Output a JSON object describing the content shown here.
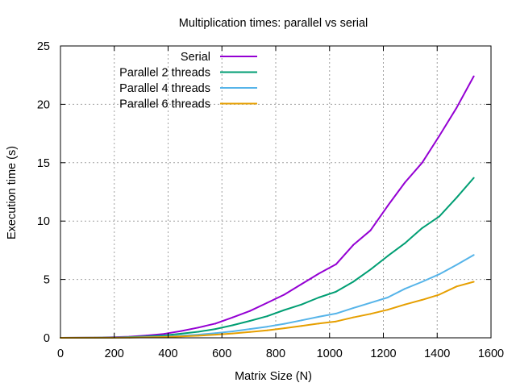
{
  "chart_data": {
    "type": "line",
    "title": "Multiplication times: parallel vs serial",
    "xlabel": "Matrix Size (N)",
    "ylabel": "Execution time (s)",
    "xlim": [
      0,
      1600
    ],
    "ylim": [
      0,
      25
    ],
    "xticks": [
      0,
      200,
      400,
      600,
      800,
      1000,
      1200,
      1400,
      1600
    ],
    "yticks": [
      0,
      5,
      10,
      15,
      20,
      25
    ],
    "xtick_labels": [
      "0",
      "200",
      "400",
      "600",
      "800",
      "1000",
      "1200",
      "1400",
      "1600"
    ],
    "ytick_labels": [
      "0",
      "5",
      "10",
      "15",
      "20",
      "25"
    ],
    "grid": true,
    "legend_position": "top-left",
    "series": [
      {
        "name": "Serial",
        "color": "#9400d3",
        "x": [
          0,
          128,
          192,
          256,
          320,
          384,
          448,
          512,
          576,
          640,
          704,
          768,
          832,
          896,
          960,
          1024,
          1088,
          1152,
          1216,
          1280,
          1344,
          1408,
          1472,
          1536
        ],
        "y": [
          0.0,
          0.02,
          0.05,
          0.1,
          0.2,
          0.33,
          0.58,
          0.88,
          1.22,
          1.75,
          2.3,
          3.0,
          3.7,
          4.6,
          5.5,
          6.3,
          7.95,
          9.2,
          11.3,
          13.3,
          15.0,
          17.3,
          19.7,
          22.4
        ]
      },
      {
        "name": "Parallel 2 threads",
        "color": "#009e73",
        "x": [
          0,
          128,
          192,
          256,
          320,
          384,
          448,
          512,
          576,
          640,
          704,
          768,
          832,
          896,
          960,
          1024,
          1088,
          1152,
          1216,
          1280,
          1344,
          1408,
          1472,
          1536
        ],
        "y": [
          0.0,
          0.01,
          0.03,
          0.06,
          0.12,
          0.2,
          0.35,
          0.52,
          0.75,
          1.08,
          1.45,
          1.85,
          2.38,
          2.85,
          3.45,
          3.95,
          4.8,
          5.85,
          7.0,
          8.1,
          9.4,
          10.4,
          12.0,
          13.7
        ]
      },
      {
        "name": "Parallel 4 threads",
        "color": "#56b4e9",
        "x": [
          0,
          128,
          192,
          256,
          320,
          384,
          448,
          512,
          576,
          640,
          704,
          768,
          832,
          896,
          960,
          1024,
          1088,
          1152,
          1216,
          1280,
          1344,
          1408,
          1472,
          1536
        ],
        "y": [
          0.0,
          0.01,
          0.02,
          0.03,
          0.06,
          0.1,
          0.18,
          0.27,
          0.4,
          0.55,
          0.75,
          0.95,
          1.2,
          1.5,
          1.8,
          2.08,
          2.55,
          3.0,
          3.45,
          4.2,
          4.8,
          5.45,
          6.25,
          7.1
        ]
      },
      {
        "name": "Parallel 6 threads",
        "color": "#e69f00",
        "x": [
          0,
          128,
          192,
          256,
          320,
          384,
          448,
          512,
          576,
          640,
          704,
          768,
          832,
          896,
          960,
          1024,
          1088,
          1152,
          1216,
          1280,
          1344,
          1408,
          1472,
          1536
        ],
        "y": [
          0.0,
          0.01,
          0.01,
          0.02,
          0.04,
          0.07,
          0.12,
          0.18,
          0.27,
          0.37,
          0.5,
          0.64,
          0.82,
          1.02,
          1.22,
          1.4,
          1.75,
          2.05,
          2.4,
          2.85,
          3.25,
          3.7,
          4.4,
          4.8
        ]
      }
    ]
  }
}
